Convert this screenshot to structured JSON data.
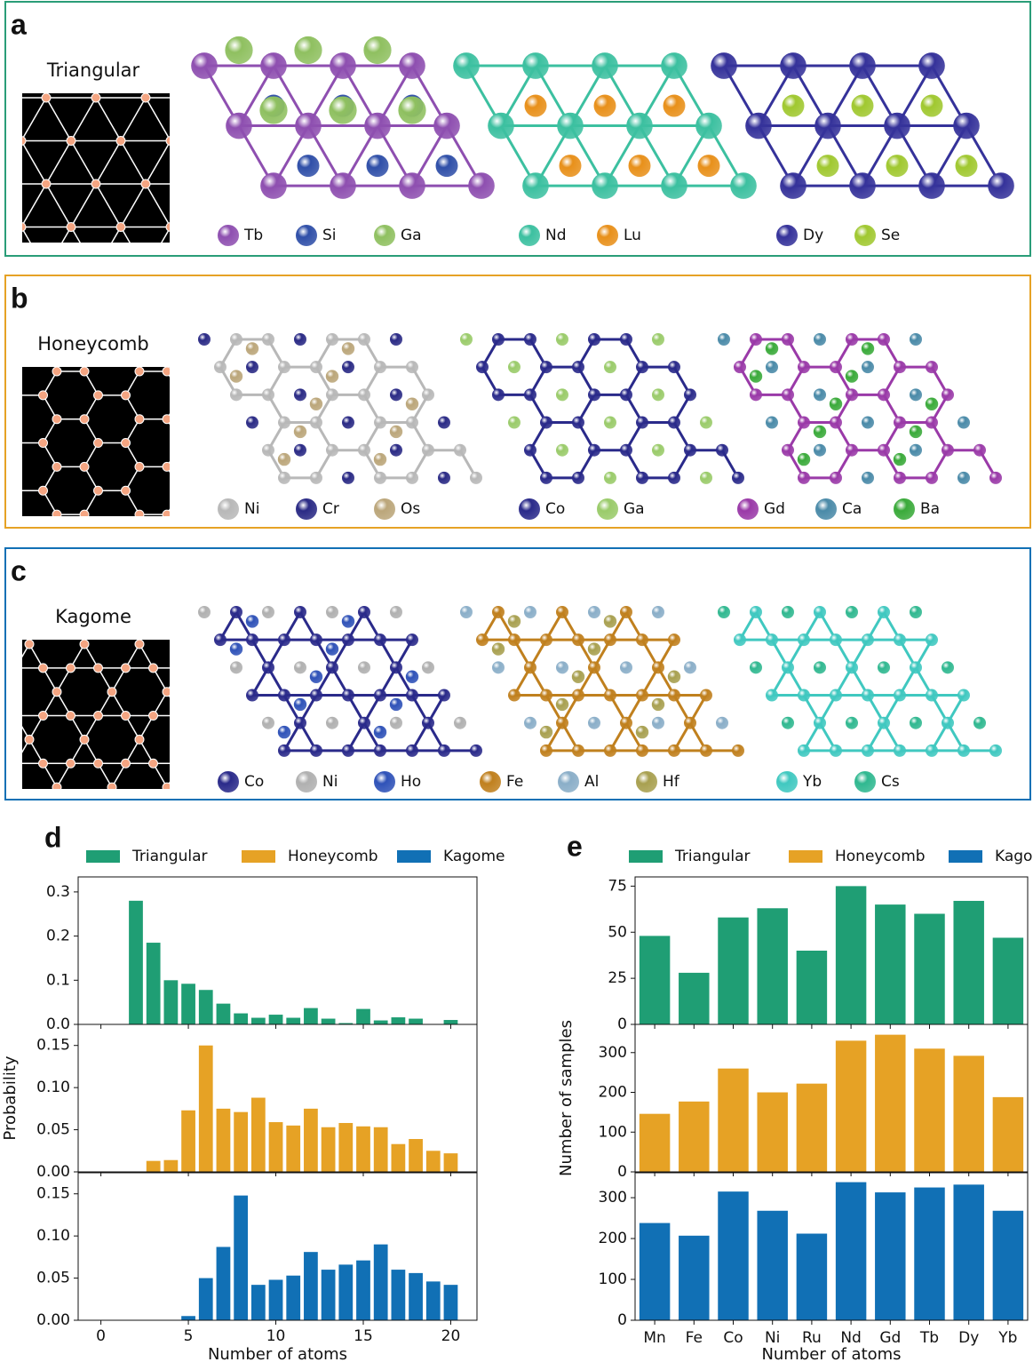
{
  "panels": [
    {
      "label": "a",
      "lattice": "Triangular",
      "color": "#2a9d78",
      "structures": [
        [
          {
            "symbol": "Tb",
            "color": "#8e4fb0"
          },
          {
            "symbol": "Si",
            "color": "#2f4fa8"
          },
          {
            "symbol": "Ga",
            "color": "#8fc060"
          }
        ],
        [
          {
            "symbol": "Nd",
            "color": "#3cc0a0"
          },
          {
            "symbol": "Lu",
            "color": "#e8901a"
          }
        ],
        [
          {
            "symbol": "Dy",
            "color": "#35329a"
          },
          {
            "symbol": "Se",
            "color": "#a0c830"
          }
        ]
      ]
    },
    {
      "label": "b",
      "lattice": "Honeycomb",
      "color": "#e6a225",
      "structures": [
        [
          {
            "symbol": "Ni",
            "color": "#b8b8b8"
          },
          {
            "symbol": "Cr",
            "color": "#2a2a85"
          },
          {
            "symbol": "Os",
            "color": "#bba67a"
          }
        ],
        [
          {
            "symbol": "Co",
            "color": "#2a2a8a"
          },
          {
            "symbol": "Ga",
            "color": "#9acb6a"
          }
        ],
        [
          {
            "symbol": "Gd",
            "color": "#9a3aa8"
          },
          {
            "symbol": "Ca",
            "color": "#4a8aa8"
          },
          {
            "symbol": "Ba",
            "color": "#3aaa3a"
          }
        ]
      ]
    },
    {
      "label": "c",
      "lattice": "Kagome",
      "color": "#1170b5",
      "structures": [
        [
          {
            "symbol": "Co",
            "color": "#2a2a8a"
          },
          {
            "symbol": "Ni",
            "color": "#b0b0b0"
          },
          {
            "symbol": "Ho",
            "color": "#2f52b8"
          }
        ],
        [
          {
            "symbol": "Fe",
            "color": "#c0801e"
          },
          {
            "symbol": "Al",
            "color": "#8aaec8"
          },
          {
            "symbol": "Hf",
            "color": "#a8a050"
          }
        ],
        [
          {
            "symbol": "Yb",
            "color": "#40c8c0"
          },
          {
            "symbol": "Cs",
            "color": "#30b890"
          }
        ]
      ]
    }
  ],
  "chart_data": [
    {
      "type": "bar",
      "label": "d",
      "ylabel": "Probability",
      "xlabel": "Number of atoms",
      "x": [
        2,
        3,
        4,
        5,
        6,
        7,
        8,
        9,
        10,
        11,
        12,
        13,
        14,
        15,
        16,
        17,
        18,
        19,
        20
      ],
      "xlim": [
        -1.3,
        21.5
      ],
      "xticks": [
        0,
        5,
        10,
        15,
        20
      ],
      "series": [
        {
          "name": "Triangular",
          "color": "#1f9e74",
          "ylim": [
            0,
            0.334
          ],
          "yticks": [
            {
              "value": 0,
              "label": "0.0"
            },
            0.1,
            0.2,
            0.3
          ],
          "values": [
            0.28,
            0.185,
            0.1,
            0.092,
            0.078,
            0.047,
            0.025,
            0.015,
            0.022,
            0.015,
            0.037,
            0.013,
            0.003,
            0.035,
            0.009,
            0.016,
            0.013,
            0,
            0.01
          ]
        },
        {
          "name": "Honeycomb",
          "color": "#e6a225",
          "ylim": [
            0,
            0.175
          ],
          "yticks": [
            {
              "value": 0,
              "label": "0.00"
            },
            0.05,
            {
              "value": 0.1,
              "label": "0.10"
            },
            0.15
          ],
          "values": [
            0,
            0.013,
            0.014,
            0.073,
            0.15,
            0.075,
            0.071,
            0.088,
            0.059,
            0.055,
            0.075,
            0.053,
            0.058,
            0.054,
            0.053,
            0.033,
            0.039,
            0.025,
            0.022
          ]
        },
        {
          "name": "Kagome",
          "color": "#1170b5",
          "ylim": [
            0,
            0.175
          ],
          "yticks": [
            {
              "value": 0,
              "label": "0.00"
            },
            0.05,
            {
              "value": 0.1,
              "label": "0.10"
            },
            0.15
          ],
          "values": [
            0,
            0,
            0,
            0.005,
            0.05,
            0.087,
            0.148,
            0.042,
            0.048,
            0.053,
            0.081,
            0.06,
            0.066,
            0.071,
            0.09,
            0.06,
            0.056,
            0.046,
            0.042
          ]
        }
      ]
    },
    {
      "type": "bar",
      "label": "e",
      "ylabel": "Number of samples",
      "xlabel": "Number of atoms",
      "categories": [
        "Mn",
        "Fe",
        "Co",
        "Ni",
        "Ru",
        "Nd",
        "Gd",
        "Tb",
        "Dy",
        "Yb"
      ],
      "series": [
        {
          "name": "Triangular",
          "color": "#1f9e74",
          "ylim": [
            0,
            80
          ],
          "yticks": [
            0,
            25,
            50,
            75
          ],
          "values": [
            48,
            28,
            58,
            63,
            40,
            75,
            65,
            60,
            67,
            47
          ]
        },
        {
          "name": "Honeycomb",
          "color": "#e6a225",
          "ylim": [
            0,
            371
          ],
          "yticks": [
            0,
            100,
            200,
            300
          ],
          "values": [
            146,
            177,
            260,
            200,
            222,
            330,
            345,
            310,
            292,
            188
          ]
        },
        {
          "name": "Kagome",
          "color": "#1170b5",
          "ylim": [
            0,
            361
          ],
          "yticks": [
            0,
            100,
            200,
            300
          ],
          "values": [
            238,
            207,
            315,
            268,
            212,
            338,
            313,
            325,
            332,
            268
          ]
        }
      ]
    }
  ]
}
